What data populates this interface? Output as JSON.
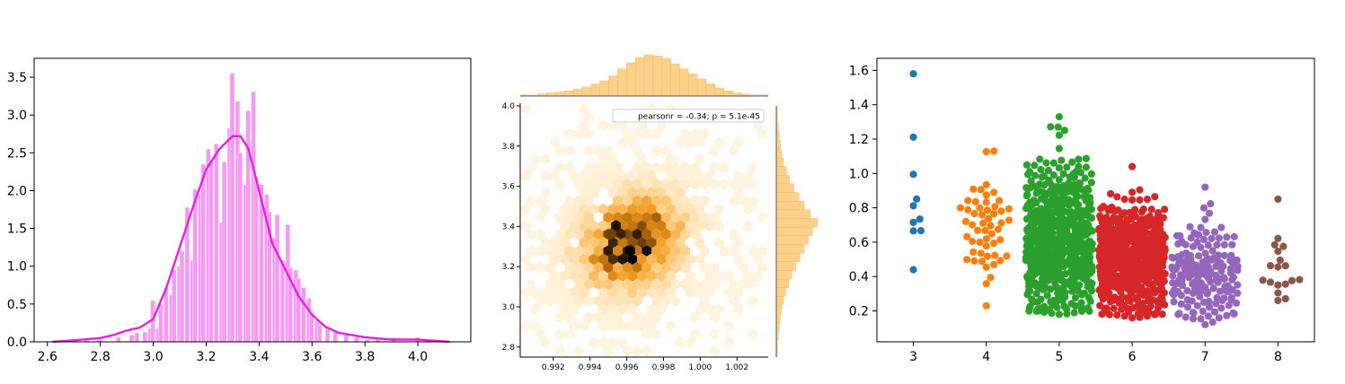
{
  "colors": {
    "hist_bar": "#f59af2",
    "kde_line": "#e81ee0",
    "hex_low": "#fff4e0",
    "hex_high": "#000000",
    "marginal": "#ffd08a",
    "swarm": [
      "#1f77b4",
      "#ff7f0e",
      "#2ca02c",
      "#d62728",
      "#9467bd",
      "#8c564b"
    ]
  },
  "chart_data": [
    {
      "type": "histogram",
      "title": "",
      "xlabel": "",
      "ylabel": "",
      "xlim": [
        2.55,
        4.2
      ],
      "ylim": [
        0,
        3.75
      ],
      "x_ticks": [
        "2.6",
        "2.8",
        "3.0",
        "3.2",
        "3.4",
        "3.6",
        "3.8",
        "4.0"
      ],
      "y_ticks": [
        "0.0",
        "0.5",
        "1.0",
        "1.5",
        "2.0",
        "2.5",
        "3.0",
        "3.5"
      ],
      "bin_width": 0.017,
      "bins": [
        [
          2.74,
          0.03
        ],
        [
          2.79,
          0.03
        ],
        [
          2.86,
          0.06
        ],
        [
          2.91,
          0.09
        ],
        [
          2.93,
          0.12
        ],
        [
          2.96,
          0.13
        ],
        [
          2.98,
          0.18
        ],
        [
          2.99,
          0.55
        ],
        [
          3.01,
          0.18
        ],
        [
          3.02,
          0.5
        ],
        [
          3.04,
          0.72
        ],
        [
          3.06,
          0.62
        ],
        [
          3.07,
          0.95
        ],
        [
          3.09,
          1.0
        ],
        [
          3.1,
          1.2
        ],
        [
          3.12,
          1.78
        ],
        [
          3.14,
          1.08
        ],
        [
          3.15,
          2.02
        ],
        [
          3.17,
          1.95
        ],
        [
          3.18,
          2.35
        ],
        [
          3.2,
          2.55
        ],
        [
          3.21,
          2.4
        ],
        [
          3.23,
          2.62
        ],
        [
          3.25,
          1.58
        ],
        [
          3.26,
          2.38
        ],
        [
          3.28,
          2.83
        ],
        [
          3.29,
          3.55
        ],
        [
          3.31,
          3.18
        ],
        [
          3.32,
          2.5
        ],
        [
          3.34,
          2.08
        ],
        [
          3.35,
          3.06
        ],
        [
          3.37,
          3.31
        ],
        [
          3.38,
          2.18
        ],
        [
          3.4,
          2.08
        ],
        [
          3.42,
          1.95
        ],
        [
          3.43,
          1.72
        ],
        [
          3.45,
          1.38
        ],
        [
          3.46,
          1.68
        ],
        [
          3.48,
          1.08
        ],
        [
          3.5,
          1.55
        ],
        [
          3.51,
          0.98
        ],
        [
          3.53,
          0.95
        ],
        [
          3.54,
          0.84
        ],
        [
          3.56,
          0.72
        ],
        [
          3.58,
          0.58
        ],
        [
          3.59,
          0.38
        ],
        [
          3.61,
          0.28
        ],
        [
          3.62,
          0.22
        ],
        [
          3.65,
          0.18
        ],
        [
          3.68,
          0.15
        ],
        [
          3.72,
          0.09
        ],
        [
          3.76,
          0.06
        ],
        [
          3.8,
          0.03
        ],
        [
          3.84,
          0.03
        ],
        [
          3.9,
          0.06
        ],
        [
          3.99,
          0.06
        ]
      ],
      "kde": {
        "x": [
          2.62,
          2.7,
          2.8,
          2.85,
          2.9,
          2.95,
          3.0,
          3.05,
          3.1,
          3.15,
          3.2,
          3.25,
          3.3,
          3.33,
          3.36,
          3.4,
          3.45,
          3.5,
          3.55,
          3.6,
          3.65,
          3.7,
          3.8,
          3.9,
          4.0,
          4.12
        ],
        "y": [
          0.0,
          0.02,
          0.05,
          0.09,
          0.15,
          0.19,
          0.3,
          0.72,
          1.25,
          1.78,
          2.28,
          2.55,
          2.72,
          2.72,
          2.55,
          2.0,
          1.3,
          0.95,
          0.6,
          0.36,
          0.2,
          0.12,
          0.06,
          0.03,
          0.03,
          0.0
        ]
      }
    },
    {
      "type": "hexbin",
      "title": "",
      "xlabel": "",
      "ylabel": "",
      "xlim": [
        0.9902,
        1.0037
      ],
      "ylim": [
        2.75,
        4.0
      ],
      "x_ticks": [
        "0.992",
        "0.994",
        "0.996",
        "0.998",
        "1.000",
        "1.002"
      ],
      "y_ticks": [
        "2.8",
        "3.0",
        "3.2",
        "3.4",
        "3.6",
        "3.8",
        "4.0"
      ],
      "annotation": "pearsonr = -0.34; p = 5.1e-45",
      "center": [
        0.9963,
        3.32
      ],
      "peak_point": [
        0.9962,
        3.28
      ],
      "marginal_x_counts": [
        1,
        1,
        2,
        3,
        4,
        5,
        7,
        9,
        12,
        15,
        20,
        27,
        33,
        38,
        41,
        40,
        37,
        32,
        27,
        22,
        17,
        12,
        8,
        5,
        3,
        2,
        1,
        1
      ],
      "marginal_y_counts": [
        1,
        1,
        2,
        3,
        4,
        5,
        7,
        9,
        12,
        15,
        19,
        23,
        27,
        31,
        35,
        40,
        33,
        27,
        22,
        17,
        13,
        10,
        7,
        5,
        4,
        3,
        2,
        1,
        1
      ]
    },
    {
      "type": "swarm",
      "title": "",
      "xlabel": "",
      "ylabel": "",
      "categories": [
        "3",
        "4",
        "5",
        "6",
        "7",
        "8"
      ],
      "ylim": [
        0.02,
        1.67
      ],
      "y_ticks": [
        "0.2",
        "0.4",
        "0.6",
        "0.8",
        "1.0",
        "1.2",
        "1.4",
        "1.6"
      ],
      "groups": [
        {
          "category": "3",
          "n": 10,
          "min": 0.44,
          "max": 1.58,
          "center": 0.84
        },
        {
          "category": "4",
          "n": 53,
          "min": 0.23,
          "max": 1.13,
          "center": 0.67
        },
        {
          "category": "5",
          "n": 681,
          "min": 0.18,
          "max": 1.33,
          "center": 0.58
        },
        {
          "category": "6",
          "n": 638,
          "min": 0.16,
          "max": 1.04,
          "center": 0.5
        },
        {
          "category": "7",
          "n": 199,
          "min": 0.12,
          "max": 0.92,
          "center": 0.4
        },
        {
          "category": "8",
          "n": 18,
          "min": 0.26,
          "max": 0.85,
          "center": 0.42
        }
      ]
    }
  ]
}
